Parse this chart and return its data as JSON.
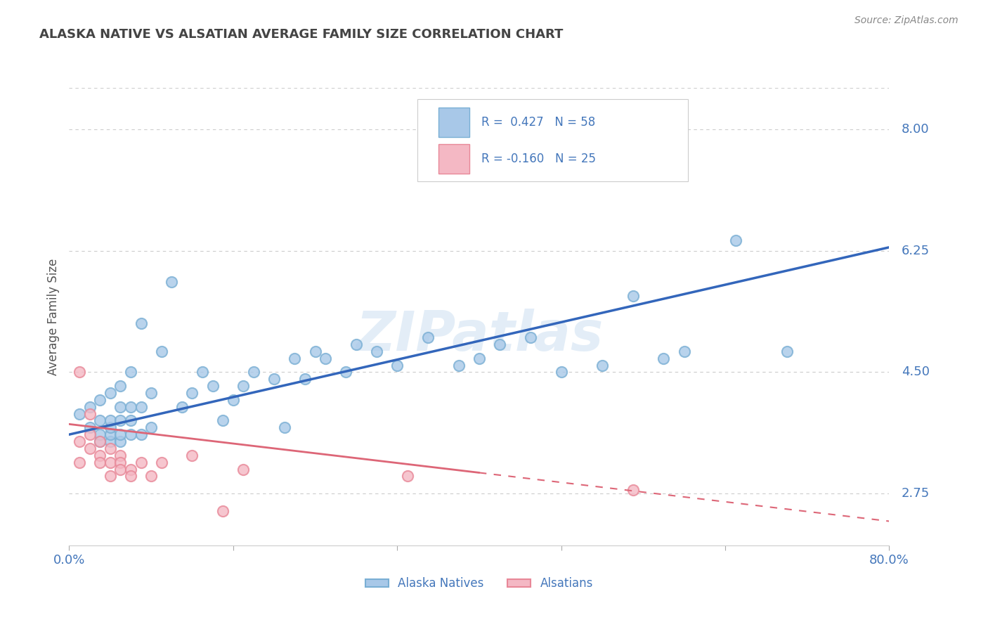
{
  "title": "ALASKA NATIVE VS ALSATIAN AVERAGE FAMILY SIZE CORRELATION CHART",
  "source": "Source: ZipAtlas.com",
  "ylabel": "Average Family Size",
  "xlim": [
    0.0,
    0.8
  ],
  "ylim": [
    2.0,
    8.6
  ],
  "yticks": [
    2.75,
    4.5,
    6.25,
    8.0
  ],
  "xticks": [
    0.0,
    0.16,
    0.32,
    0.48,
    0.64,
    0.8
  ],
  "xticklabels": [
    "0.0%",
    "",
    "",
    "",
    "",
    "80.0%"
  ],
  "background_color": "#ffffff",
  "plot_bg_color": "#ffffff",
  "grid_color": "#cccccc",
  "watermark": "ZIPatlas",
  "blue_color": "#7aafd4",
  "pink_color": "#f4a0b0",
  "blue_scatter": {
    "x": [
      0.01,
      0.02,
      0.02,
      0.03,
      0.03,
      0.03,
      0.03,
      0.04,
      0.04,
      0.04,
      0.04,
      0.04,
      0.05,
      0.05,
      0.05,
      0.05,
      0.05,
      0.06,
      0.06,
      0.06,
      0.06,
      0.07,
      0.07,
      0.07,
      0.08,
      0.08,
      0.09,
      0.1,
      0.11,
      0.12,
      0.13,
      0.14,
      0.15,
      0.16,
      0.17,
      0.18,
      0.2,
      0.21,
      0.22,
      0.23,
      0.24,
      0.25,
      0.27,
      0.28,
      0.3,
      0.32,
      0.35,
      0.38,
      0.4,
      0.42,
      0.45,
      0.48,
      0.52,
      0.55,
      0.58,
      0.6,
      0.65,
      0.7
    ],
    "y": [
      3.9,
      3.7,
      4.0,
      3.5,
      3.6,
      3.8,
      4.1,
      3.5,
      3.6,
      3.7,
      3.8,
      4.2,
      3.5,
      3.6,
      3.8,
      4.0,
      4.3,
      3.6,
      3.8,
      4.0,
      4.5,
      3.6,
      4.0,
      5.2,
      3.7,
      4.2,
      4.8,
      5.8,
      4.0,
      4.2,
      4.5,
      4.3,
      3.8,
      4.1,
      4.3,
      4.5,
      4.4,
      3.7,
      4.7,
      4.4,
      4.8,
      4.7,
      4.5,
      4.9,
      4.8,
      4.6,
      5.0,
      4.6,
      4.7,
      4.9,
      5.0,
      4.5,
      4.6,
      5.6,
      4.7,
      4.8,
      6.4,
      4.8
    ]
  },
  "pink_scatter": {
    "x": [
      0.01,
      0.01,
      0.01,
      0.02,
      0.02,
      0.02,
      0.03,
      0.03,
      0.03,
      0.04,
      0.04,
      0.04,
      0.05,
      0.05,
      0.05,
      0.06,
      0.06,
      0.07,
      0.08,
      0.09,
      0.12,
      0.15,
      0.17,
      0.33,
      0.55
    ],
    "y": [
      4.5,
      3.5,
      3.2,
      3.9,
      3.6,
      3.4,
      3.5,
      3.3,
      3.2,
      3.4,
      3.2,
      3.0,
      3.3,
      3.2,
      3.1,
      3.1,
      3.0,
      3.2,
      3.0,
      3.2,
      3.3,
      2.5,
      3.1,
      3.0,
      2.8
    ]
  },
  "blue_line": {
    "x0": 0.0,
    "x1": 0.8,
    "y0": 3.6,
    "y1": 6.3
  },
  "pink_line_solid": {
    "x0": 0.0,
    "x1": 0.4,
    "y0": 3.75,
    "y1": 3.05
  },
  "pink_line_dashed": {
    "x0": 0.4,
    "x1": 0.8,
    "y0": 3.05,
    "y1": 2.35
  },
  "R_blue": "0.427",
  "N_blue": "58",
  "R_pink": "-0.160",
  "N_pink": "25",
  "legend_blue": "Alaska Natives",
  "legend_pink": "Alsatians",
  "title_color": "#444444",
  "label_color": "#4477bb",
  "tick_color": "#4477bb",
  "axis_color": "#888888"
}
